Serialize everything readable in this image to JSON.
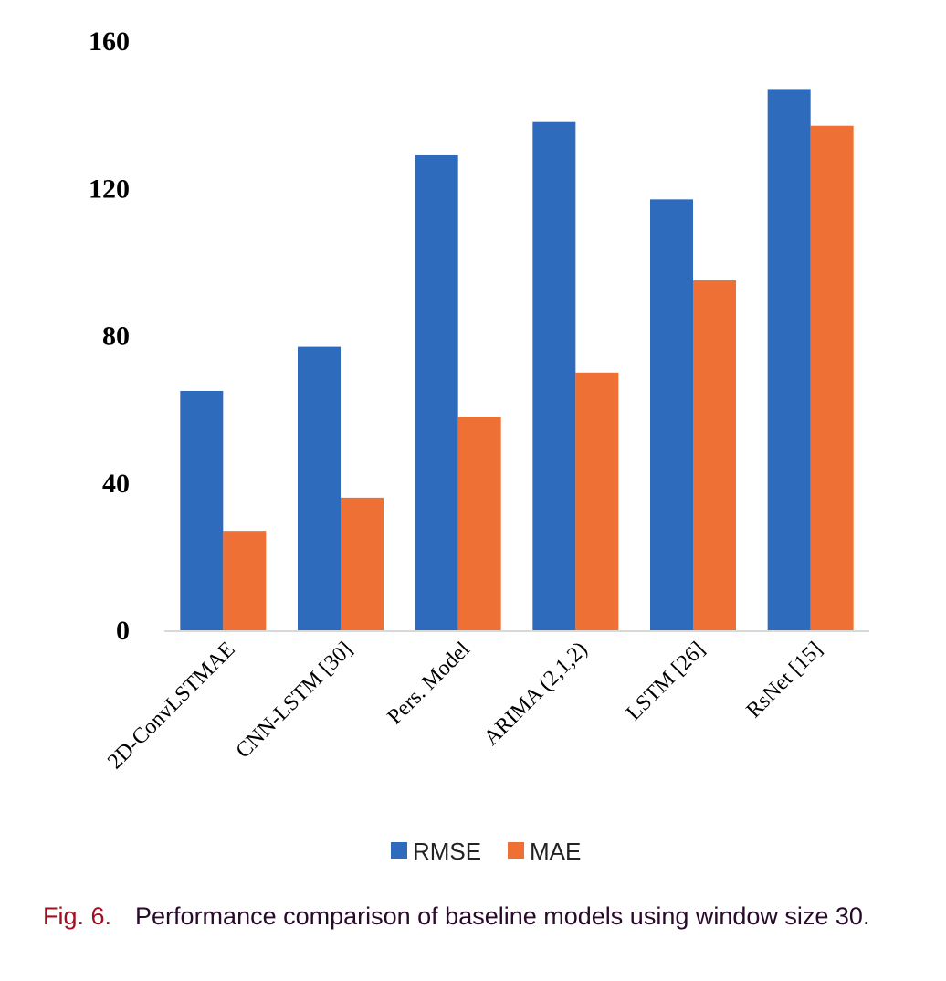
{
  "chart_data": {
    "type": "bar",
    "categories": [
      "2D-ConvLSTMAE",
      "CNN-LSTM [30]",
      "Pers. Model",
      "ARIMA (2,1,2)",
      "LSTM [26]",
      "RsNet [15]"
    ],
    "series": [
      {
        "name": "RMSE",
        "color": "#2f6bbd",
        "values": [
          65,
          77,
          129,
          138,
          117,
          147
        ]
      },
      {
        "name": "MAE",
        "color": "#ef7034",
        "values": [
          27,
          36,
          58,
          70,
          95,
          137
        ]
      }
    ],
    "yticks": [
      0,
      40,
      80,
      120,
      160
    ],
    "ylim": [
      0,
      160
    ],
    "grid": false,
    "legend": "bottom-center"
  },
  "caption": {
    "label": "Fig. 6.",
    "text": "Performance comparison of baseline models using window size 30."
  }
}
